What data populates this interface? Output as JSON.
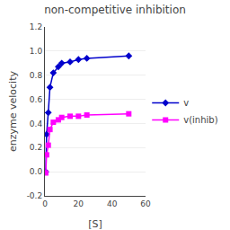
{
  "chart_data": {
    "type": "line",
    "title": "non-competitive inhibition",
    "x_label": "[S]",
    "y_label": "enzyme velocity",
    "xlim": [
      0,
      60
    ],
    "xticks": [
      0,
      20,
      40,
      60
    ],
    "ylim": [
      -0.2,
      1.2
    ],
    "yticks": [
      -0.2,
      {
        "value": 0,
        "label": "0.0"
      },
      0.2,
      0.4,
      0.6,
      0.8,
      {
        "value": 1.0,
        "label": "1.0"
      },
      1.2
    ],
    "grid": "y",
    "legend": "right",
    "series": [
      {
        "name": "v",
        "color": "#0000CC",
        "marker": "diamond",
        "x": [
          0.5,
          1,
          2,
          3,
          5,
          8,
          10,
          15,
          20,
          25,
          50
        ],
        "values": [
          0.0,
          0.31,
          0.49,
          0.7,
          0.82,
          0.87,
          0.9,
          0.91,
          0.93,
          0.94,
          0.96
        ]
      },
      {
        "name": "v(inhib)",
        "color": "#FF00FF",
        "marker": "square",
        "x": [
          0.5,
          1,
          2,
          3,
          5,
          8,
          10,
          15,
          20,
          25,
          50
        ],
        "values": [
          -0.01,
          0.14,
          0.22,
          0.35,
          0.41,
          0.43,
          0.45,
          0.46,
          0.46,
          0.47,
          0.48
        ]
      }
    ]
  }
}
